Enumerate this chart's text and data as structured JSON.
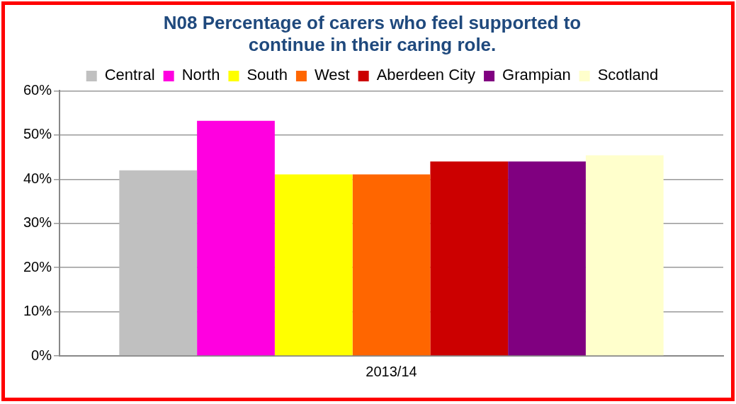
{
  "chart_data": {
    "type": "bar",
    "title": "N08 Percentage of carers who feel supported to\ncontinue in their caring role.",
    "categories": [
      "2013/14"
    ],
    "series": [
      {
        "name": "Central",
        "color": "#c0c0c0",
        "values": [
          42.0
        ]
      },
      {
        "name": "North",
        "color": "#ff00e0",
        "values": [
          53.2
        ]
      },
      {
        "name": "South",
        "color": "#ffff00",
        "values": [
          41.1
        ]
      },
      {
        "name": "West",
        "color": "#ff6600",
        "values": [
          41.1
        ]
      },
      {
        "name": "Aberdeen City",
        "color": "#cc0000",
        "values": [
          44.0
        ]
      },
      {
        "name": "Grampian",
        "color": "#800080",
        "values": [
          44.0
        ]
      },
      {
        "name": "Scotland",
        "color": "#ffffcc",
        "values": [
          45.4
        ]
      }
    ],
    "ylim": [
      0,
      60
    ],
    "yticks": [
      {
        "value": 0,
        "label": "0%"
      },
      {
        "value": 10,
        "label": "10%"
      },
      {
        "value": 20,
        "label": "20%"
      },
      {
        "value": 30,
        "label": "30%"
      },
      {
        "value": 40,
        "label": "40%"
      },
      {
        "value": 50,
        "label": "50%"
      },
      {
        "value": 60,
        "label": "60%"
      }
    ],
    "grid": "y",
    "legend": "top"
  }
}
